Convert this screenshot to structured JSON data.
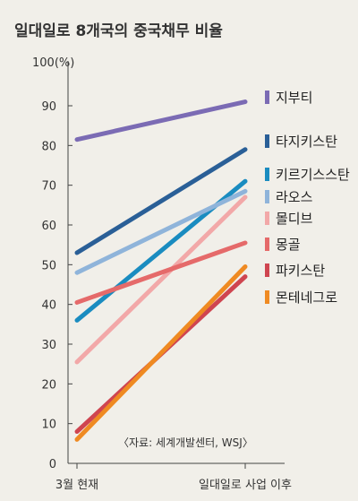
{
  "chart_data": {
    "type": "line",
    "title": "일대일로 8개국의 중국채무 비율",
    "y_unit_label": "100(%)",
    "ylim": [
      0,
      100
    ],
    "yticks": [
      0,
      10,
      20,
      30,
      40,
      50,
      60,
      70,
      80,
      90
    ],
    "categories": [
      "3월 현재",
      "일대일로 사업 이후"
    ],
    "series": [
      {
        "name": "지부티",
        "color": "#7b6bb4",
        "values": [
          81.5,
          91
        ]
      },
      {
        "name": "타지키스탄",
        "color": "#2a5f97",
        "values": [
          53,
          79
        ]
      },
      {
        "name": "키르기스스탄",
        "color": "#1a8cc0",
        "values": [
          36,
          71
        ]
      },
      {
        "name": "라오스",
        "color": "#8fb4da",
        "values": [
          48,
          68.5
        ]
      },
      {
        "name": "몰디브",
        "color": "#f2a8a8",
        "values": [
          25.5,
          67
        ]
      },
      {
        "name": "몽골",
        "color": "#e56a6a",
        "values": [
          40.5,
          55.5
        ]
      },
      {
        "name": "파키스탄",
        "color": "#cf4550",
        "values": [
          8,
          47
        ]
      },
      {
        "name": "몬테네그로",
        "color": "#ef8a22",
        "values": [
          6,
          49.5
        ]
      }
    ],
    "source": "〈자료: 세계개발센터, WSJ〉",
    "grid": false,
    "legend_position": "right"
  }
}
